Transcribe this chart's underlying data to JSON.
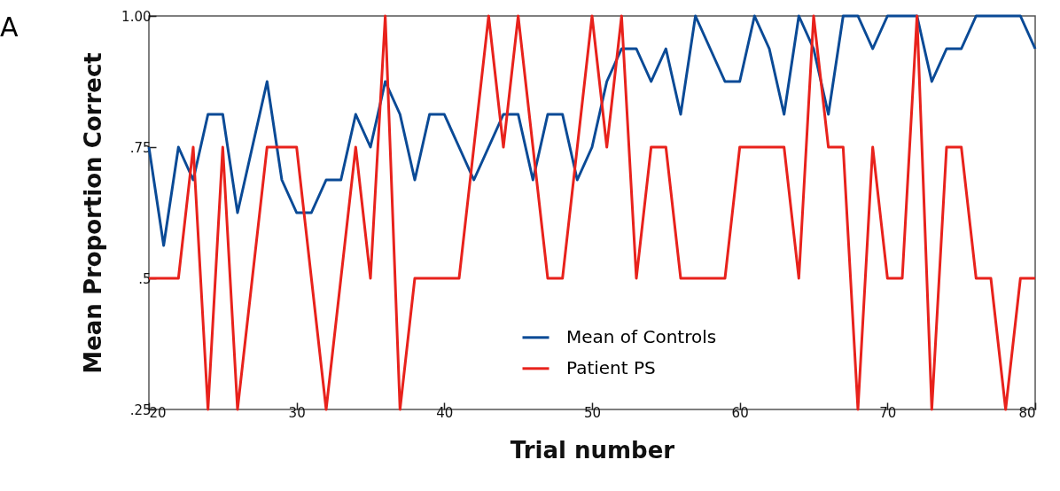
{
  "chart_data": {
    "type": "line",
    "title": "A",
    "xlabel": "Trial number",
    "ylabel": "Mean Proportion Correct",
    "x": [
      20,
      21,
      22,
      23,
      24,
      25,
      26,
      27,
      28,
      29,
      30,
      31,
      32,
      33,
      34,
      35,
      36,
      37,
      38,
      39,
      40,
      41,
      42,
      43,
      44,
      45,
      46,
      47,
      48,
      49,
      50,
      51,
      52,
      53,
      54,
      55,
      56,
      57,
      58,
      59,
      60,
      61,
      62,
      63,
      64,
      65,
      66,
      67,
      68,
      69,
      70,
      71,
      72,
      73,
      74,
      75,
      76,
      77,
      78,
      79,
      80
    ],
    "series": [
      {
        "name": "Mean of Controls",
        "color": "#0a4a96",
        "values": [
          0.75,
          0.5625,
          0.75,
          0.6875,
          0.8125,
          0.8125,
          0.625,
          0.75,
          0.875,
          0.6875,
          0.625,
          0.625,
          0.6875,
          0.6875,
          0.8125,
          0.75,
          0.875,
          0.8125,
          0.6875,
          0.8125,
          0.8125,
          0.75,
          0.6875,
          0.75,
          0.8125,
          0.8125,
          0.6875,
          0.8125,
          0.8125,
          0.6875,
          0.75,
          0.875,
          0.9375,
          0.9375,
          0.875,
          0.9375,
          0.8125,
          1,
          0.9375,
          0.875,
          0.875,
          1,
          0.9375,
          0.8125,
          1,
          0.9375,
          0.8125,
          1,
          1,
          0.9375,
          1,
          1,
          1,
          0.875,
          0.9375,
          0.9375,
          1,
          1,
          1,
          1,
          0.9375
        ]
      },
      {
        "name": "Patient  PS",
        "color": "#e8221c",
        "values": [
          0.5,
          0.5,
          0.5,
          0.75,
          0.25,
          0.75,
          0.25,
          0.5,
          0.75,
          0.75,
          0.75,
          0.5,
          0.25,
          0.5,
          0.75,
          0.5,
          1,
          0.25,
          0.5,
          0.5,
          0.5,
          0.5,
          0.75,
          1,
          0.75,
          1,
          0.75,
          0.5,
          0.5,
          0.75,
          1,
          0.75,
          1,
          0.5,
          0.75,
          0.75,
          0.5,
          0.5,
          0.5,
          0.5,
          0.75,
          0.75,
          0.75,
          0.75,
          0.5,
          1,
          0.75,
          0.75,
          0.25,
          0.75,
          0.5,
          0.5,
          1,
          0.25,
          0.75,
          0.75,
          0.5,
          0.5,
          0.25,
          0.5,
          0.5
        ]
      }
    ],
    "xlim": [
      20,
      80
    ],
    "xticks": [
      20,
      30,
      40,
      50,
      60,
      70,
      80
    ],
    "ylim": [
      0.25,
      1
    ],
    "yticks": [
      {
        "value": 0.25,
        "label": ".25"
      },
      {
        "value": 0.5,
        "label": ".5"
      },
      {
        "value": 0.75,
        "label": ".75"
      },
      {
        "value": 1,
        "label": "1.00"
      }
    ],
    "grid": false,
    "legend": "bottom",
    "marker": "none",
    "line_style": "solid"
  }
}
